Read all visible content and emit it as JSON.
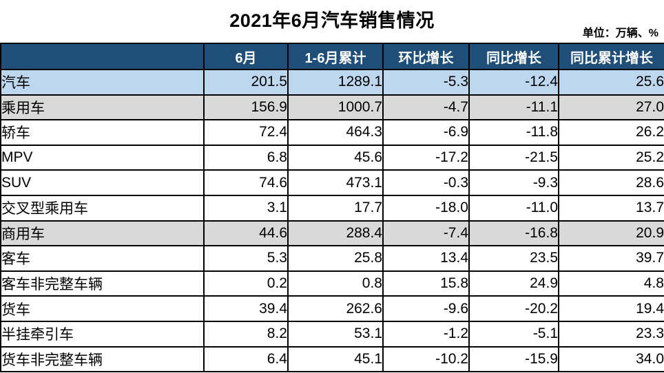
{
  "title": "2021年6月汽车销售情况",
  "unit_note": "单位：万辆、%",
  "colors": {
    "header_bg": "#1F4E79",
    "header_text": "#FFFFFF",
    "row_blue": "#BDD7EE",
    "row_gray": "#D9D9D9",
    "border": "#000000"
  },
  "chart_data": {
    "type": "table",
    "title": "2021年6月汽车销售情况",
    "unit": "单位：万辆、%",
    "columns": [
      "",
      "6月",
      "1-6月累计",
      "环比增长",
      "同比增长",
      "同比累计增长"
    ],
    "rows": [
      {
        "label": "汽车",
        "indent": 0,
        "band": "blue",
        "values": [
          "201.5",
          "1289.1",
          "-5.3",
          "-12.4",
          "25.6"
        ]
      },
      {
        "label": "乘用车",
        "indent": 1,
        "band": "gray",
        "values": [
          "156.9",
          "1000.7",
          "-4.7",
          "-11.1",
          "27.0"
        ]
      },
      {
        "label": "轿车",
        "indent": 2,
        "band": "white",
        "values": [
          "72.4",
          "464.3",
          "-6.9",
          "-11.8",
          "26.2"
        ]
      },
      {
        "label": "MPV",
        "indent": 2,
        "band": "white",
        "values": [
          "6.8",
          "45.6",
          "-17.2",
          "-21.5",
          "25.2"
        ]
      },
      {
        "label": "SUV",
        "indent": 2,
        "band": "white",
        "values": [
          "74.6",
          "473.1",
          "-0.3",
          "-9.3",
          "28.6"
        ]
      },
      {
        "label": "交叉型乘用车",
        "indent": 2,
        "band": "white",
        "values": [
          "3.1",
          "17.7",
          "-18.0",
          "-11.0",
          "13.7"
        ]
      },
      {
        "label": "商用车",
        "indent": 1,
        "band": "gray",
        "values": [
          "44.6",
          "288.4",
          "-7.4",
          "-16.8",
          "20.9"
        ]
      },
      {
        "label": "客车",
        "indent": 2,
        "band": "white",
        "values": [
          "5.3",
          "25.8",
          "13.4",
          "23.5",
          "39.7"
        ]
      },
      {
        "label": "客车非完整车辆",
        "indent": 3,
        "band": "white",
        "values": [
          "0.2",
          "0.8",
          "15.8",
          "24.9",
          "4.8"
        ]
      },
      {
        "label": "货车",
        "indent": 2,
        "band": "white",
        "values": [
          "39.4",
          "262.6",
          "-9.6",
          "-20.2",
          "19.4"
        ]
      },
      {
        "label": "半挂牵引车",
        "indent": 3,
        "band": "white",
        "values": [
          "8.2",
          "53.1",
          "-1.2",
          "-5.1",
          "23.3"
        ]
      },
      {
        "label": "货车非完整车辆",
        "indent": 3,
        "band": "white",
        "values": [
          "6.4",
          "45.1",
          "-10.2",
          "-15.9",
          "34.0"
        ]
      }
    ]
  }
}
